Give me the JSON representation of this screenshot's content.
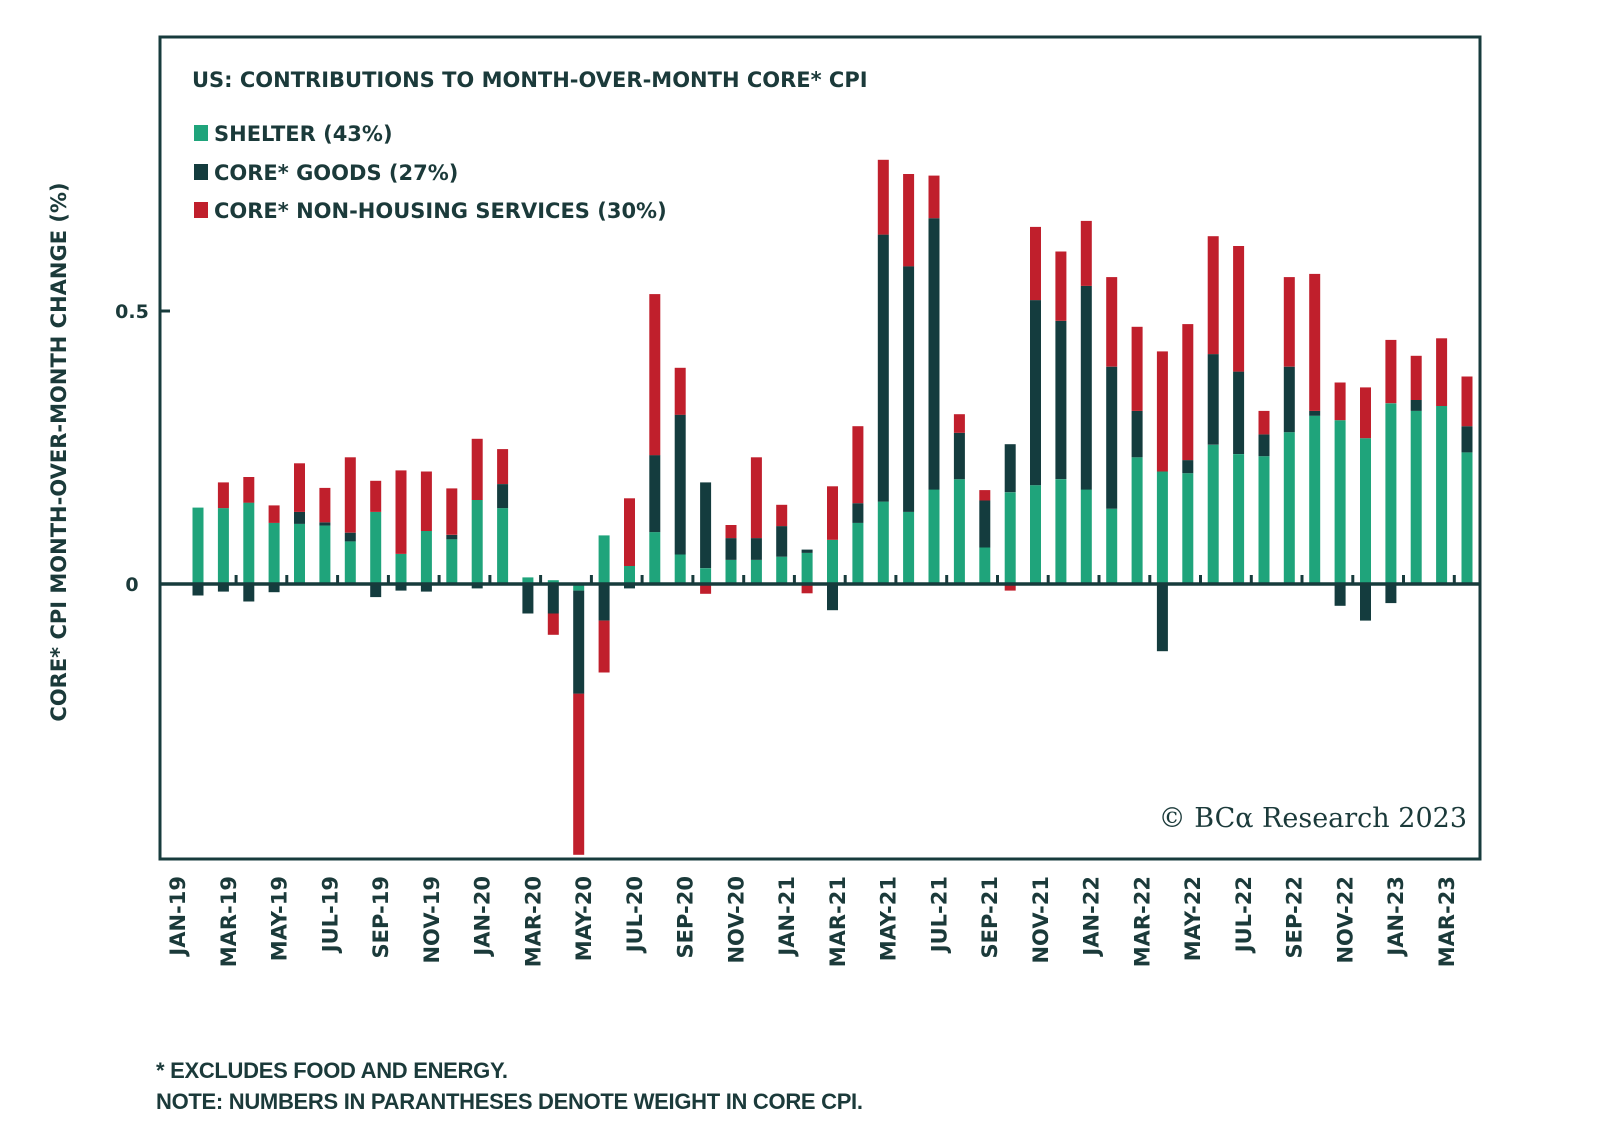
{
  "chart_data": {
    "type": "bar",
    "stacked": true,
    "title": "US: CONTRIBUTIONS TO MONTH-OVER-MONTH CORE* CPI",
    "xlabel": "",
    "ylabel": "CORE* CPI MONTH-OVER-MONTH CHANGE (%)",
    "ylim": [
      -0.5,
      0.99
    ],
    "yticks": [
      0,
      0.5
    ],
    "ytick_labels": [
      "0",
      "0.5"
    ],
    "grid": false,
    "legend_position": "top-left",
    "copyright": "© BCα Research 2023",
    "categories": [
      "JAN-19",
      "FEB-19",
      "MAR-19",
      "APR-19",
      "MAY-19",
      "JUN-19",
      "JUL-19",
      "AUG-19",
      "SEP-19",
      "OCT-19",
      "NOV-19",
      "DEC-19",
      "JAN-20",
      "FEB-20",
      "MAR-20",
      "APR-20",
      "MAY-20",
      "JUN-20",
      "JUL-20",
      "AUG-20",
      "SEP-20",
      "OCT-20",
      "NOV-20",
      "DEC-20",
      "JAN-21",
      "FEB-21",
      "MAR-21",
      "APR-21",
      "MAY-21",
      "JUN-21",
      "JUL-21",
      "AUG-21",
      "SEP-21",
      "OCT-21",
      "NOV-21",
      "DEC-21",
      "JAN-22",
      "FEB-22",
      "MAR-22",
      "APR-22",
      "MAY-22",
      "JUN-22",
      "JUL-22",
      "AUG-22",
      "SEP-22",
      "OCT-22",
      "NOV-22",
      "DEC-22",
      "JAN-23",
      "FEB-23",
      "MAR-23"
    ],
    "xtick_labels": [
      "JAN-19",
      "MAR-19",
      "MAY-19",
      "JUL-19",
      "SEP-19",
      "NOV-19",
      "JAN-20",
      "MAR-20",
      "MAY-20",
      "JUL-20",
      "SEP-20",
      "NOV-20",
      "JAN-21",
      "MAR-21",
      "MAY-21",
      "JUL-21",
      "SEP-21",
      "NOV-21",
      "JAN-22",
      "MAR-22",
      "MAY-22",
      "JUL-22",
      "SEP-22",
      "NOV-22",
      "JAN-23",
      "MAR-23"
    ],
    "series": [
      {
        "name": "SHELTER (43%)",
        "color": "#1fa47b",
        "values": [
          0.14,
          0.139,
          0.149,
          0.112,
          0.11,
          0.107,
          0.078,
          0.132,
          0.055,
          0.097,
          0.082,
          0.154,
          0.139,
          0.012,
          0.007,
          -0.012,
          0.089,
          0.033,
          0.095,
          0.054,
          0.029,
          0.044,
          0.044,
          0.05,
          0.057,
          0.081,
          0.112,
          0.151,
          0.132,
          0.173,
          0.192,
          0.067,
          0.168,
          0.181,
          0.192,
          0.173,
          0.138,
          0.232,
          0.206,
          0.203,
          0.255,
          0.238,
          0.234,
          0.278,
          0.308,
          0.3,
          0.267,
          0.331,
          0.317,
          0.326,
          0.241
        ]
      },
      {
        "name": "CORE* GOODS (27%)",
        "color": "#143c3e",
        "values": [
          -0.021,
          -0.014,
          -0.032,
          -0.015,
          0.022,
          0.006,
          0.016,
          -0.024,
          -0.012,
          -0.014,
          0.008,
          -0.008,
          0.044,
          -0.054,
          -0.054,
          -0.189,
          -0.067,
          -0.008,
          0.141,
          0.256,
          0.157,
          0.04,
          0.04,
          0.056,
          0.006,
          -0.048,
          0.036,
          0.489,
          0.45,
          0.497,
          0.085,
          0.086,
          0.088,
          0.339,
          0.29,
          0.373,
          0.26,
          0.085,
          -0.123,
          0.024,
          0.166,
          0.151,
          0.04,
          0.12,
          0.009,
          -0.04,
          -0.067,
          -0.035,
          0.02,
          0.0,
          0.048
        ]
      },
      {
        "name": "CORE* NON-HOUSING SERVICES (30%)",
        "color": "#c01f2c",
        "values": [
          0.0,
          0.047,
          0.047,
          0.032,
          0.089,
          0.063,
          0.138,
          0.057,
          0.153,
          0.109,
          0.085,
          0.112,
          0.064,
          0.0,
          -0.039,
          -0.295,
          -0.095,
          0.124,
          0.295,
          0.086,
          -0.018,
          0.024,
          0.148,
          0.039,
          -0.017,
          0.098,
          0.141,
          0.137,
          0.169,
          0.078,
          0.034,
          0.019,
          -0.012,
          0.134,
          0.127,
          0.119,
          0.164,
          0.154,
          0.22,
          0.249,
          0.216,
          0.23,
          0.043,
          0.164,
          0.251,
          0.069,
          0.093,
          0.116,
          0.081,
          0.124,
          0.091
        ]
      }
    ]
  },
  "footnotes": [
    "* EXCLUDES FOOD AND ENERGY.",
    "NOTE: NUMBERS IN PARANTHESES DENOTE WEIGHT IN CORE CPI."
  ]
}
